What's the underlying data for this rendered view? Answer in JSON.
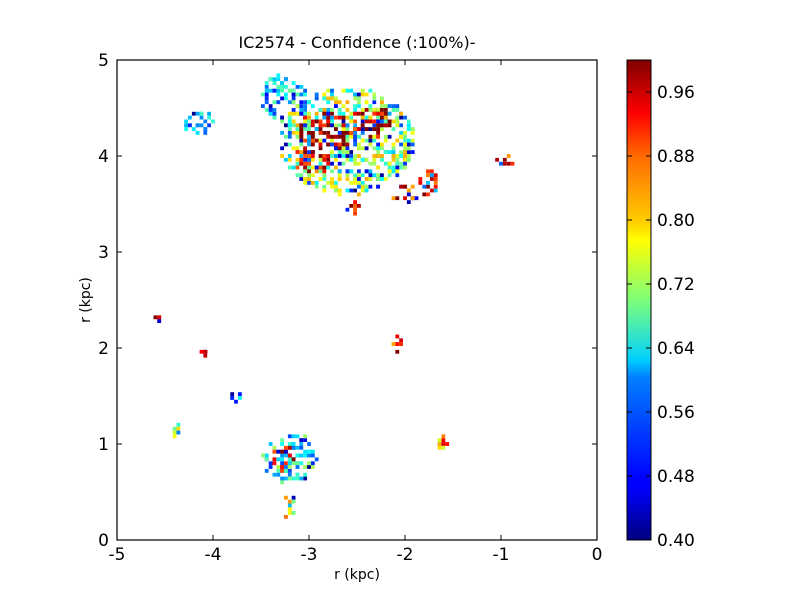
{
  "chart_data": {
    "type": "heatmap",
    "title": "IC2574 - Confidence (:100%)-",
    "xlabel": "r (kpc)",
    "ylabel": "r (kpc)",
    "xlim": [
      -5,
      0
    ],
    "ylim": [
      0,
      5
    ],
    "xticks": [
      "-5",
      "-4",
      "-3",
      "-2",
      "-1",
      "0"
    ],
    "yticks": [
      "0",
      "1",
      "2",
      "3",
      "4",
      "5"
    ],
    "colorbar": {
      "range": [
        0.4,
        1.0
      ],
      "colormap": "jet",
      "ticks": [
        "0.40",
        "0.48",
        "0.56",
        "0.64",
        "0.72",
        "0.80",
        "0.88",
        "0.96"
      ]
    },
    "regions": [
      {
        "cx": -2.6,
        "cy": 4.15,
        "rx": 0.72,
        "ry": 0.55,
        "value": 0.72
      },
      {
        "cx": -2.8,
        "cy": 4.25,
        "rx": 0.3,
        "ry": 0.2,
        "value": 0.98
      },
      {
        "cx": -2.35,
        "cy": 4.35,
        "rx": 0.22,
        "ry": 0.15,
        "value": 0.97
      },
      {
        "cx": -2.95,
        "cy": 3.95,
        "rx": 0.18,
        "ry": 0.15,
        "value": 0.95
      },
      {
        "cx": -1.75,
        "cy": 3.75,
        "rx": 0.1,
        "ry": 0.15,
        "value": 0.96
      },
      {
        "cx": -2.0,
        "cy": 3.6,
        "rx": 0.12,
        "ry": 0.1,
        "value": 0.9
      },
      {
        "cx": -2.55,
        "cy": 3.45,
        "rx": 0.08,
        "ry": 0.07,
        "value": 0.95
      },
      {
        "cx": -3.25,
        "cy": 4.6,
        "rx": 0.25,
        "ry": 0.25,
        "value": 0.6
      },
      {
        "cx": -4.15,
        "cy": 4.35,
        "rx": 0.15,
        "ry": 0.12,
        "value": 0.6
      },
      {
        "cx": -0.95,
        "cy": 3.95,
        "rx": 0.09,
        "ry": 0.06,
        "value": 0.9
      },
      {
        "cx": -3.2,
        "cy": 0.85,
        "rx": 0.28,
        "ry": 0.25,
        "value": 0.62
      },
      {
        "cx": -3.25,
        "cy": 0.85,
        "rx": 0.12,
        "ry": 0.12,
        "value": 0.98
      },
      {
        "cx": -3.2,
        "cy": 0.35,
        "rx": 0.08,
        "ry": 0.12,
        "value": 0.75
      },
      {
        "cx": -2.08,
        "cy": 2.03,
        "rx": 0.07,
        "ry": 0.08,
        "value": 0.92
      },
      {
        "cx": -1.6,
        "cy": 1.0,
        "rx": 0.07,
        "ry": 0.1,
        "value": 0.85
      },
      {
        "cx": -4.55,
        "cy": 2.3,
        "rx": 0.04,
        "ry": 0.04,
        "value": 0.95
      },
      {
        "cx": -4.1,
        "cy": 1.96,
        "rx": 0.05,
        "ry": 0.03,
        "value": 0.98
      },
      {
        "cx": -4.4,
        "cy": 1.15,
        "rx": 0.06,
        "ry": 0.06,
        "value": 0.7
      },
      {
        "cx": -3.75,
        "cy": 1.5,
        "rx": 0.06,
        "ry": 0.05,
        "value": 0.55
      }
    ]
  }
}
